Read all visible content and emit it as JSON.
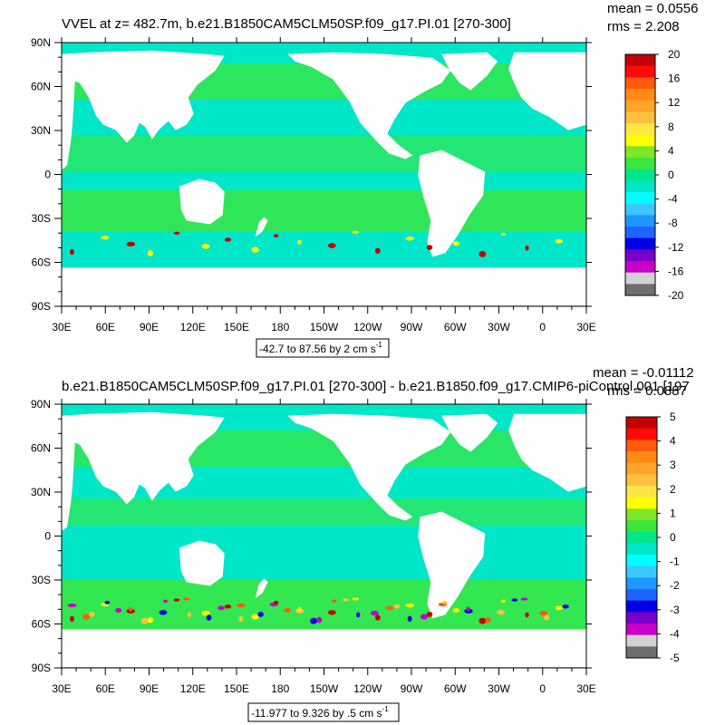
{
  "chart_data": [
    {
      "type": "heatmap",
      "title": "VVEL at z= 482.7m, b.e21.B1850CAM5CLM50SP.f09_g17.PI.01 [270-300]",
      "stats": {
        "mean": "mean = 0.0556",
        "rms": "rms = 2.208"
      },
      "xticks": [
        "30E",
        "60E",
        "90E",
        "120E",
        "150E",
        "180",
        "150W",
        "120W",
        "90W",
        "60W",
        "30W",
        "0",
        "30E"
      ],
      "yticks": [
        "90N",
        "60N",
        "30N",
        "0",
        "30S",
        "60S",
        "90S"
      ],
      "ylim": [
        -90,
        90
      ],
      "info_label": {
        "text": "-42.7 to 87.56 by 2 cm s",
        "sup": "-1"
      },
      "colorbar": {
        "labels": [
          "20",
          "16",
          "12",
          "8",
          "4",
          "0",
          "-4",
          "-8",
          "-12",
          "-16",
          "-20"
        ],
        "colors": [
          "#c40000",
          "#ff0a0a",
          "#ff5a0a",
          "#ff8a14",
          "#ffa428",
          "#ffc040",
          "#ffe644",
          "#ffff00",
          "#80e628",
          "#3ce63c",
          "#00e68a",
          "#00e6c8",
          "#00ffff",
          "#3cc8ff",
          "#1e96ff",
          "#1e64ff",
          "#0000e6",
          "#7800c8",
          "#c800c8",
          "#d2d2d2",
          "#6e6e6e"
        ]
      }
    },
    {
      "type": "heatmap",
      "title": "b.e21.B1850CAM5CLM50SP.f09_g17.PI.01 [270-300] - b.e21.B1850.f09_g17.CMIP6-piControl.001 [197",
      "stats": {
        "mean": "mean = -0.01112",
        "rms": "rms = 0.0887"
      },
      "xticks": [
        "30E",
        "60E",
        "90E",
        "120E",
        "150E",
        "180",
        "150W",
        "120W",
        "90W",
        "60W",
        "30W",
        "0",
        "30E"
      ],
      "yticks": [
        "90N",
        "60N",
        "30N",
        "0",
        "30S",
        "60S",
        "90S"
      ],
      "ylim": [
        -90,
        90
      ],
      "info_label": {
        "text": "-11.977 to 9.326 by .5 cm s",
        "sup": "-1"
      },
      "colorbar": {
        "labels": [
          "5",
          "4",
          "3",
          "2",
          "1",
          "0",
          "-1",
          "-2",
          "-3",
          "-4",
          "-5"
        ],
        "colors": [
          "#c40000",
          "#ff0a0a",
          "#ff5a0a",
          "#ff8a14",
          "#ffa428",
          "#ffc040",
          "#ffe644",
          "#ffff00",
          "#80e628",
          "#3ce63c",
          "#00e68a",
          "#00e6c8",
          "#00ffff",
          "#3cc8ff",
          "#1e96ff",
          "#1e64ff",
          "#0000e6",
          "#7800c8",
          "#c800c8",
          "#d2d2d2",
          "#6e6e6e"
        ]
      }
    }
  ]
}
